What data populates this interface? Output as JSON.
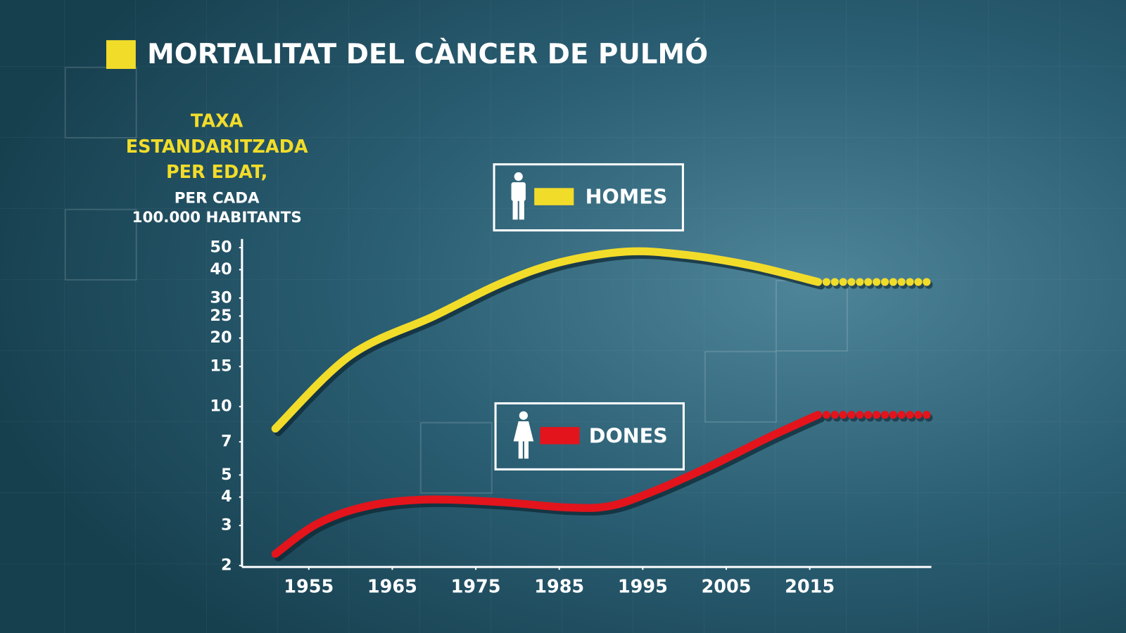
{
  "chart_data": {
    "type": "line",
    "title": "MORTALITAT DEL CÀNCER DE PULMÓ",
    "ylabel": [
      "TAXA",
      "ESTANDARITZADA",
      "PER EDAT,"
    ],
    "ylabel_note": [
      "PER CADA",
      "100.000 HABITANTS"
    ],
    "log_scale_y": true,
    "xlim": [
      1947,
      2030
    ],
    "xticks": [
      1955,
      1965,
      1975,
      1985,
      1995,
      2005,
      2015
    ],
    "ylim": [
      2,
      50
    ],
    "yticks": [
      2,
      3,
      4,
      5,
      7,
      10,
      15,
      20,
      25,
      30,
      40,
      50
    ],
    "x": [
      1951,
      1956,
      1960,
      1962,
      1969,
      1970,
      1978,
      1985,
      1986,
      1991,
      1993,
      1996,
      2000,
      2003,
      2008,
      2010,
      2016
    ],
    "projection_x": [
      2017,
      2018,
      2019,
      2020,
      2021,
      2022,
      2023,
      2024,
      2025,
      2026,
      2027,
      2028,
      2029
    ],
    "series": [
      {
        "name": "HOMES",
        "color": "#f2dc2a",
        "values": [
          8,
          null,
          16.8,
          null,
          null,
          25,
          34.8,
          43,
          null,
          null,
          48,
          null,
          46.5,
          null,
          41.7,
          null,
          35.3
        ],
        "projection": [
          35.3,
          35.3,
          35.3,
          35.3,
          35.3,
          35.3,
          35.3,
          35.3,
          35.3,
          35.3,
          35.3,
          35.3,
          35.3
        ]
      },
      {
        "name": "DONES",
        "color": "#e3141c",
        "values": [
          2.25,
          3.05,
          null,
          3.65,
          3.9,
          null,
          3.8,
          null,
          3.6,
          3.65,
          null,
          4.2,
          null,
          5.45,
          null,
          7.3,
          9.2
        ],
        "projection": [
          9.2,
          9.2,
          9.2,
          9.2,
          9.2,
          9.2,
          9.2,
          9.2,
          9.2,
          9.2,
          9.2,
          9.2,
          9.2
        ]
      }
    ]
  }
}
